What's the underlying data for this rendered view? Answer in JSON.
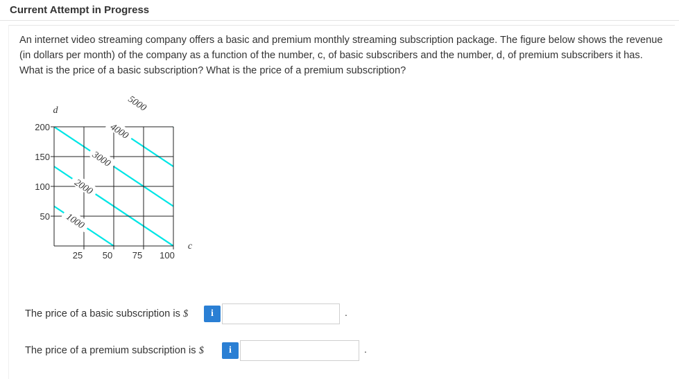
{
  "header": {
    "title": "Current Attempt in Progress"
  },
  "question": {
    "text": "An internet video streaming company offers a basic and premium monthly streaming subscription package. The figure below shows the revenue (in dollars per month) of the company as a function of the number, c, of basic subscribers and the number, d, of premium subscribers it has. What is the price of a basic subscription? What is the price of a premium subscription?"
  },
  "chart_data": {
    "type": "contour",
    "xlabel": "c",
    "ylabel": "d",
    "x_ticks": [
      "25",
      "50",
      "75",
      "100"
    ],
    "y_ticks": [
      "50",
      "100",
      "150",
      "200"
    ],
    "xlim": [
      0,
      100
    ],
    "ylim": [
      0,
      200
    ],
    "contour_color": "#00e5e5",
    "contours": [
      {
        "label": "1000",
        "level": 1000,
        "points": [
          [
            0,
            66.7
          ],
          [
            50,
            0
          ]
        ]
      },
      {
        "label": "2000",
        "level": 2000,
        "points": [
          [
            0,
            133.3
          ],
          [
            100,
            0
          ]
        ]
      },
      {
        "label": "3000",
        "level": 3000,
        "points": [
          [
            0,
            200
          ],
          [
            100,
            66.7
          ]
        ]
      },
      {
        "label": "4000",
        "level": 4000,
        "points": [
          [
            50,
            200
          ],
          [
            100,
            133.3
          ]
        ]
      },
      {
        "label": "5000",
        "level": 5000,
        "points": [
          [
            100,
            200
          ]
        ]
      }
    ]
  },
  "answers": {
    "basic_label": "The price of a basic subscription is",
    "premium_label": "The price of a premium subscription is",
    "currency": "$",
    "info_icon": "i",
    "basic_value": "",
    "premium_value": "",
    "period": "."
  }
}
